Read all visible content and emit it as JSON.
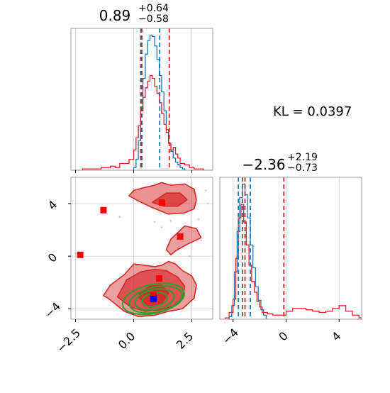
{
  "kl_label": "KL = 0.0397",
  "colors": {
    "blue": "#1f77b4",
    "red": "#d62728",
    "green": "#2ca02c",
    "grid": "#cccccc",
    "fill_red": "#e8858a",
    "marker_red": "#ff0000",
    "marker_blue": "#0000ff",
    "scatter_pink": "#f7b6d2"
  },
  "chart_data": [
    {
      "type": "histogram",
      "panel": "top-left",
      "title_value": "0.89",
      "title_plus": "+0.64",
      "title_minus": "−0.58",
      "xlim": [
        -2.7,
        3.4
      ],
      "grid": true,
      "series": [
        {
          "color": "blue",
          "step": "stepped",
          "x": [
            0.0,
            0.1,
            0.2,
            0.3,
            0.4,
            0.5,
            0.6,
            0.7,
            0.8,
            0.9,
            1.0,
            1.1,
            1.2,
            1.3,
            1.4,
            1.5,
            1.6,
            1.7,
            1.8,
            1.9,
            2.0,
            2.1,
            2.2
          ],
          "values": [
            0.02,
            0.08,
            0.22,
            0.45,
            0.68,
            0.86,
            0.96,
            1.0,
            0.99,
            0.92,
            0.82,
            0.7,
            0.58,
            0.44,
            0.3,
            0.2,
            0.14,
            0.09,
            0.06,
            0.04,
            0.02,
            0.01,
            0.0
          ]
        },
        {
          "color": "red",
          "step": "stepped",
          "x": [
            -2.6,
            -2.2,
            -1.8,
            -1.4,
            -1.0,
            -0.8,
            -0.6,
            -0.4,
            -0.2,
            0.0,
            0.1,
            0.2,
            0.3,
            0.4,
            0.5,
            0.6,
            0.7,
            0.8,
            0.9,
            1.0,
            1.1,
            1.2,
            1.3,
            1.4,
            1.5,
            1.6,
            1.7,
            1.8,
            1.9,
            2.0,
            2.2,
            2.4,
            2.6,
            2.8,
            3.0,
            3.2
          ],
          "values": [
            0.0,
            0.01,
            0.01,
            0.02,
            0.03,
            0.02,
            0.05,
            0.05,
            0.08,
            0.15,
            0.24,
            0.33,
            0.44,
            0.54,
            0.61,
            0.66,
            0.7,
            0.68,
            0.62,
            0.57,
            0.5,
            0.42,
            0.34,
            0.28,
            0.2,
            0.15,
            0.17,
            0.12,
            0.09,
            0.05,
            0.04,
            0.02,
            0.01,
            0.01,
            0.0,
            0.0
          ]
        }
      ],
      "vlines": [
        {
          "x": 0.3,
          "color": "blue"
        },
        {
          "x": 1.12,
          "color": "blue"
        },
        {
          "x": 0.33,
          "color": "red"
        },
        {
          "x": 1.53,
          "color": "red"
        },
        {
          "x": 0.35,
          "color": "gray"
        }
      ]
    },
    {
      "type": "histogram",
      "panel": "bottom-right",
      "title_value": "−2.36",
      "title_plus": "+2.19",
      "title_minus": "−0.73",
      "xlim": [
        -5.0,
        5.7
      ],
      "xticks": [
        -4,
        0,
        4
      ],
      "xticklabels": [
        "−4",
        "0",
        "4"
      ],
      "grid": true,
      "series": [
        {
          "color": "blue",
          "step": "stepped",
          "x": [
            -4.3,
            -4.1,
            -3.9,
            -3.7,
            -3.5,
            -3.3,
            -3.1,
            -2.9,
            -2.7,
            -2.5,
            -2.3,
            -2.1,
            -1.9,
            -1.7,
            -1.5
          ],
          "values": [
            0.02,
            0.1,
            0.35,
            0.65,
            0.9,
            1.0,
            0.92,
            0.75,
            0.55,
            0.38,
            0.24,
            0.14,
            0.07,
            0.03,
            0.0
          ]
        },
        {
          "color": "red",
          "step": "stepped",
          "x": [
            -4.6,
            -4.3,
            -4.0,
            -3.8,
            -3.6,
            -3.4,
            -3.2,
            -3.0,
            -2.8,
            -2.6,
            -2.4,
            -2.2,
            -2.0,
            -1.8,
            -1.4,
            -1.0,
            -0.5,
            0.0,
            0.5,
            1.0,
            1.5,
            2.0,
            2.5,
            3.0,
            3.5,
            4.0,
            4.5,
            5.0,
            5.5
          ],
          "values": [
            0.01,
            0.05,
            0.15,
            0.45,
            0.75,
            0.85,
            0.72,
            0.55,
            0.4,
            0.28,
            0.2,
            0.13,
            0.09,
            0.05,
            0.04,
            0.03,
            0.03,
            0.06,
            0.08,
            0.08,
            0.07,
            0.06,
            0.05,
            0.06,
            0.08,
            0.1,
            0.06,
            0.03,
            0.01
          ]
        }
      ],
      "vlines": [
        {
          "x": -3.6,
          "color": "blue"
        },
        {
          "x": -2.7,
          "color": "blue"
        },
        {
          "x": -3.1,
          "color": "red"
        },
        {
          "x": -0.17,
          "color": "red"
        },
        {
          "x": -3.3,
          "color": "gray"
        }
      ]
    },
    {
      "type": "scatter",
      "panel": "bottom-left",
      "xlim": [
        -2.7,
        3.4
      ],
      "ylim": [
        -4.8,
        6.0
      ],
      "xticks": [
        -2.5,
        0.0,
        2.5
      ],
      "xticklabels": [
        "−2.5",
        "0.0",
        "2.5"
      ],
      "yticks": [
        -4,
        0,
        4
      ],
      "yticklabels": [
        "−4",
        "0",
        "4"
      ],
      "grid": true,
      "red_contours": [
        {
          "level": "outer",
          "x": [
            -1.1,
            -0.4,
            0.2,
            0.9,
            1.5,
            2.1,
            2.6,
            2.7,
            2.5,
            2.1,
            1.8,
            1.5,
            1.2,
            0.9,
            0.5,
            0.0,
            -0.4,
            -1.0,
            -1.3,
            -1.1
          ],
          "y": [
            -3.2,
            -4.2,
            -4.6,
            -4.5,
            -4.2,
            -4.0,
            -3.2,
            -2.2,
            -1.5,
            -1.1,
            -0.6,
            -0.4,
            -0.7,
            -0.8,
            -0.7,
            -0.6,
            -1.4,
            -2.2,
            -3.0,
            -3.2
          ]
        },
        {
          "level": "middle",
          "x": [
            -0.7,
            -0.1,
            0.5,
            1.1,
            1.7,
            2.1,
            2.2,
            1.9,
            1.4,
            0.9,
            0.3,
            -0.3,
            -0.7
          ],
          "y": [
            -3.1,
            -3.9,
            -4.2,
            -4.1,
            -3.8,
            -3.2,
            -2.3,
            -1.6,
            -1.1,
            -1.0,
            -1.2,
            -1.8,
            -3.1
          ]
        },
        {
          "level": "inner",
          "x": [
            0.2,
            0.7,
            1.2,
            1.5,
            1.2,
            0.7,
            0.3,
            0.2
          ],
          "y": [
            -3.1,
            -3.9,
            -3.6,
            -2.8,
            -2.2,
            -2.3,
            -2.7,
            -3.1
          ]
        },
        {
          "level": "upper",
          "x": [
            0.2,
            0.8,
            1.5,
            2.2,
            2.6,
            2.7,
            2.6,
            2.2,
            1.6,
            1.2,
            0.9,
            0.4,
            0.0,
            -0.2,
            0.2
          ],
          "y": [
            4.2,
            3.7,
            3.2,
            3.3,
            3.6,
            4.3,
            5.1,
            5.5,
            5.4,
            5.6,
            5.4,
            5.2,
            5.0,
            4.6,
            4.2
          ]
        },
        {
          "level": "upper-inner",
          "x": [
            0.8,
            1.3,
            1.9,
            2.3,
            2.0,
            1.4,
            0.8
          ],
          "y": [
            4.1,
            3.8,
            3.8,
            4.3,
            4.8,
            4.8,
            4.1
          ]
        },
        {
          "level": "bridge",
          "x": [
            1.8,
            2.3,
            2.9,
            2.7,
            2.2,
            1.9,
            1.6,
            1.4,
            1.6,
            1.8
          ],
          "y": [
            0.4,
            0.9,
            1.4,
            2.1,
            2.3,
            1.8,
            1.3,
            0.5,
            0.1,
            0.4
          ]
        }
      ],
      "green_ellipses": [
        {
          "cx": 0.9,
          "cy": -3.3,
          "rx": 0.85,
          "ry": 0.75
        },
        {
          "cx": 0.95,
          "cy": -3.3,
          "rx": 1.15,
          "ry": 0.95
        },
        {
          "cx": 0.85,
          "cy": -3.25,
          "rx": 1.35,
          "ry": 1.1
        },
        {
          "cx": 0.9,
          "cy": -3.3,
          "rx": 0.55,
          "ry": 0.5
        }
      ],
      "red_squares": [
        {
          "x": 1.22,
          "y": 4.08
        },
        {
          "x": -1.3,
          "y": 3.5
        },
        {
          "x": -2.3,
          "y": 0.1
        },
        {
          "x": 2.0,
          "y": 1.5
        },
        {
          "x": 1.1,
          "y": -1.7
        },
        {
          "x": 0.85,
          "y": -3.0
        }
      ],
      "blue_squares": [
        {
          "x": 0.85,
          "y": -3.25
        }
      ],
      "scatter_points": [
        {
          "x": 1.9,
          "y": 0.6
        },
        {
          "x": 2.8,
          "y": 2.8
        },
        {
          "x": 3.1,
          "y": 5.0
        },
        {
          "x": 0.9,
          "y": 2.6
        },
        {
          "x": 1.2,
          "y": 2.2
        },
        {
          "x": 2.4,
          "y": 0.0
        },
        {
          "x": -0.6,
          "y": 3.0
        },
        {
          "x": 1.6,
          "y": 2.7
        },
        {
          "x": 3.2,
          "y": 4.0
        },
        {
          "x": 2.9,
          "y": 1.2
        }
      ]
    }
  ]
}
